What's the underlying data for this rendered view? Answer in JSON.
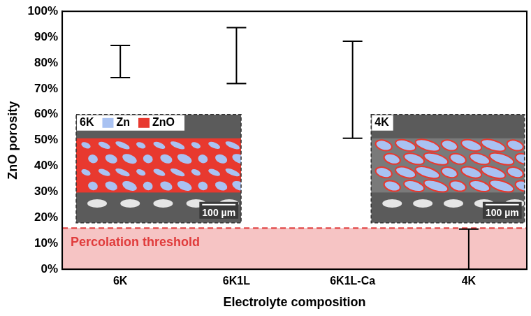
{
  "chart_data": {
    "type": "errorbar",
    "y_label": "ZnO porosity",
    "x_label": "Electrolyte composition",
    "categories": [
      "6K",
      "6K1L",
      "6K1L-Ca",
      "4K"
    ],
    "lower": [
      74.3,
      72,
      50.8,
      0
    ],
    "upper": [
      86.8,
      93.7,
      88.4,
      15.6
    ],
    "color": "#000000",
    "ylim": [
      0,
      100
    ],
    "yticks": [
      {
        "value": 0,
        "label": "0%"
      },
      {
        "value": 10,
        "label": "10%"
      },
      {
        "value": 20,
        "label": "20%"
      },
      {
        "value": 30,
        "label": "30%"
      },
      {
        "value": 40,
        "label": "40%"
      },
      {
        "value": 50,
        "label": "50%"
      },
      {
        "value": 60,
        "label": "60%"
      },
      {
        "value": 70,
        "label": "70%"
      },
      {
        "value": 80,
        "label": "80%"
      },
      {
        "value": 90,
        "label": "90%"
      },
      {
        "value": 100,
        "label": "100%"
      }
    ],
    "grid": false,
    "threshold": {
      "value": 16,
      "label": "Percolation threshold",
      "color": "#e03c3c"
    },
    "insets": [
      {
        "title": "6K",
        "legend": [
          {
            "name": "Zn",
            "color": "#a9c2f2"
          },
          {
            "name": "ZnO",
            "color": "#e8392f"
          }
        ],
        "scale_bar": "100 µm"
      },
      {
        "title": "4K",
        "scale_bar": "100 µm"
      }
    ]
  }
}
